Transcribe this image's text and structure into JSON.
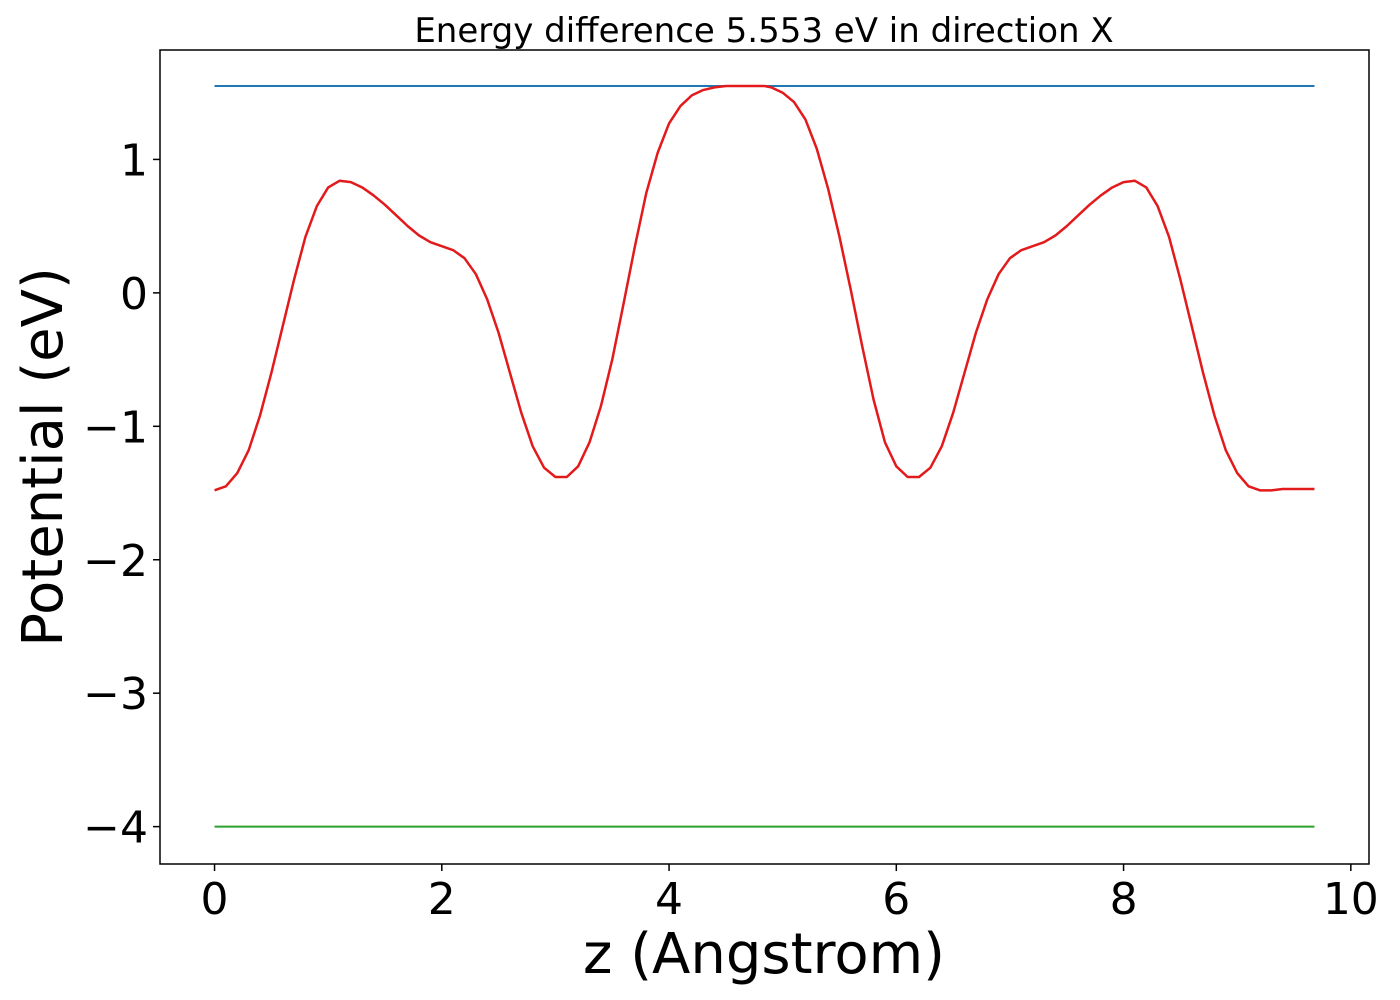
{
  "chart_data": {
    "type": "line",
    "title": "Energy difference 5.553 eV in direction X",
    "xlabel": "z (Angstrom)",
    "ylabel": "Potential (eV)",
    "xlim": [
      -0.48,
      10.16
    ],
    "ylim": [
      -4.28,
      1.82
    ],
    "xticks": [
      0,
      2,
      4,
      6,
      8,
      10
    ],
    "xtick_labels": [
      "0",
      "2",
      "4",
      "6",
      "8",
      "10"
    ],
    "yticks": [
      1,
      0,
      -1,
      -2,
      -3,
      -4
    ],
    "ytick_labels": [
      "1",
      "0",
      "−1",
      "−2",
      "−3",
      "−4"
    ],
    "grid": false,
    "series": [
      {
        "color": "#1f77b4",
        "x": [
          0,
          9.68
        ],
        "y": [
          1.55,
          1.55
        ]
      },
      {
        "color": "#2ca02c",
        "x": [
          0,
          9.68
        ],
        "y": [
          -4.0,
          -4.0
        ]
      },
      {
        "color": "#e31a1c",
        "x": [
          0,
          0.1,
          0.2,
          0.3,
          0.4,
          0.5,
          0.6,
          0.7,
          0.8,
          0.9,
          1.0,
          1.1,
          1.2,
          1.3,
          1.4,
          1.5,
          1.6,
          1.7,
          1.8,
          1.9,
          2.0,
          2.1,
          2.2,
          2.3,
          2.4,
          2.5,
          2.6,
          2.7,
          2.8,
          2.9,
          3.0,
          3.1,
          3.2,
          3.3,
          3.4,
          3.5,
          3.6,
          3.7,
          3.8,
          3.9,
          4.0,
          4.1,
          4.2,
          4.3,
          4.4,
          4.5,
          4.6,
          4.7,
          4.8,
          4.84,
          4.9,
          5.0,
          5.1,
          5.2,
          5.3,
          5.4,
          5.5,
          5.6,
          5.7,
          5.8,
          5.9,
          6.0,
          6.1,
          6.2,
          6.3,
          6.4,
          6.5,
          6.6,
          6.7,
          6.8,
          6.9,
          7.0,
          7.1,
          7.2,
          7.3,
          7.4,
          7.5,
          7.6,
          7.7,
          7.8,
          7.9,
          8.0,
          8.1,
          8.2,
          8.3,
          8.4,
          8.5,
          8.6,
          8.7,
          8.8,
          8.9,
          9.0,
          9.1,
          9.2,
          9.3,
          9.4,
          9.5,
          9.6,
          9.68
        ],
        "y": [
          -1.48,
          -1.45,
          -1.35,
          -1.18,
          -0.92,
          -0.6,
          -0.25,
          0.1,
          0.42,
          0.65,
          0.79,
          0.84,
          0.83,
          0.79,
          0.73,
          0.66,
          0.58,
          0.5,
          0.43,
          0.38,
          0.35,
          0.32,
          0.26,
          0.14,
          -0.05,
          -0.3,
          -0.6,
          -0.9,
          -1.15,
          -1.31,
          -1.38,
          -1.38,
          -1.3,
          -1.12,
          -0.85,
          -0.5,
          -0.08,
          0.35,
          0.75,
          1.05,
          1.27,
          1.4,
          1.48,
          1.52,
          1.54,
          1.55,
          1.55,
          1.55,
          1.55,
          1.55,
          1.54,
          1.5,
          1.43,
          1.3,
          1.08,
          0.78,
          0.42,
          0.02,
          -0.4,
          -0.8,
          -1.12,
          -1.3,
          -1.38,
          -1.38,
          -1.31,
          -1.15,
          -0.9,
          -0.6,
          -0.3,
          -0.05,
          0.14,
          0.26,
          0.32,
          0.35,
          0.38,
          0.43,
          0.5,
          0.58,
          0.66,
          0.73,
          0.79,
          0.83,
          0.84,
          0.79,
          0.65,
          0.42,
          0.1,
          -0.25,
          -0.6,
          -0.92,
          -1.18,
          -1.35,
          -1.45,
          -1.48,
          -1.48,
          -1.47,
          -1.47,
          -1.47,
          -1.47
        ]
      }
    ]
  }
}
